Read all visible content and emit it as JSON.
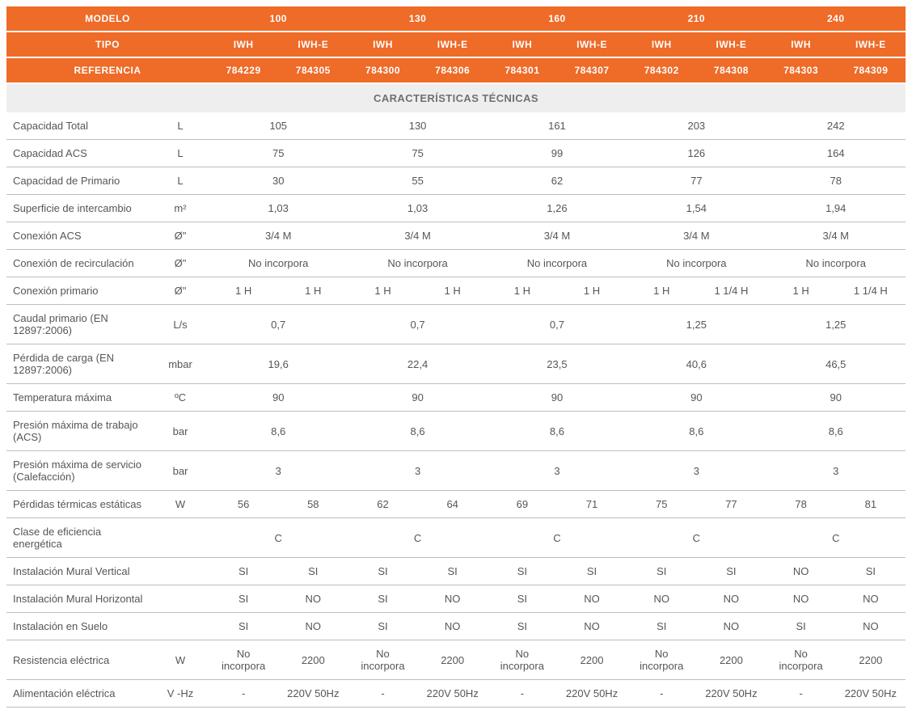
{
  "colors": {
    "header_bg": "#ee6b28",
    "header_text": "#ffffff",
    "section_bg": "#eeeeee",
    "section_text": "#6f7072",
    "body_text": "#55565a",
    "border": "#bdbdbd"
  },
  "typography": {
    "font_family": "Segoe UI, Helvetica Neue, Arial, sans-serif",
    "header_font_size_pt": 9,
    "body_font_size_pt": 10,
    "header_weight": 700,
    "body_weight": 400
  },
  "header": {
    "modelo_label": "MODELO",
    "tipo_label": "TIPO",
    "referencia_label": "REFERENCIA",
    "section_title": "CARACTERÍSTICAS TÉCNICAS",
    "models": [
      "100",
      "130",
      "160",
      "210",
      "240"
    ],
    "types": [
      "IWH",
      "IWH-E",
      "IWH",
      "IWH-E",
      "IWH",
      "IWH-E",
      "IWH",
      "IWH-E",
      "IWH",
      "IWH-E"
    ],
    "refs": [
      "784229",
      "784305",
      "784300",
      "784306",
      "784301",
      "784307",
      "784302",
      "784308",
      "784303",
      "784309"
    ]
  },
  "rows": [
    {
      "label": "Capacidad Total",
      "unit": "L",
      "span": 2,
      "vals": [
        "105",
        "130",
        "161",
        "203",
        "242"
      ]
    },
    {
      "label": "Capacidad ACS",
      "unit": "L",
      "span": 2,
      "vals": [
        "75",
        "75",
        "99",
        "126",
        "164"
      ]
    },
    {
      "label": "Capacidad de Primario",
      "unit": "L",
      "span": 2,
      "vals": [
        "30",
        "55",
        "62",
        "77",
        "78"
      ]
    },
    {
      "label": "Superficie de intercambio",
      "unit": "m²",
      "span": 2,
      "vals": [
        "1,03",
        "1,03",
        "1,26",
        "1,54",
        "1,94"
      ]
    },
    {
      "label": "Conexión ACS",
      "unit": "Ø\"",
      "span": 2,
      "vals": [
        "3/4 M",
        "3/4 M",
        "3/4 M",
        "3/4 M",
        "3/4 M"
      ]
    },
    {
      "label": "Conexión de recirculación",
      "unit": "Ø\"",
      "span": 2,
      "vals": [
        "No incorpora",
        "No incorpora",
        "No incorpora",
        "No incorpora",
        "No incorpora"
      ]
    },
    {
      "label": "Conexión primario",
      "unit": "Ø\"",
      "span": 1,
      "vals": [
        "1 H",
        "1 H",
        "1 H",
        "1 H",
        "1 H",
        "1 H",
        "1 H",
        "1 1/4 H",
        "1 H",
        "1 1/4 H"
      ]
    },
    {
      "label": "Caudal primario (EN 12897:2006)",
      "unit": "L/s",
      "span": 2,
      "vals": [
        "0,7",
        "0,7",
        "0,7",
        "1,25",
        "1,25"
      ]
    },
    {
      "label": "Pérdida de carga (EN 12897:2006)",
      "unit": "mbar",
      "span": 2,
      "vals": [
        "19,6",
        "22,4",
        "23,5",
        "40,6",
        "46,5"
      ]
    },
    {
      "label": "Temperatura máxima",
      "unit": "ºC",
      "span": 2,
      "vals": [
        "90",
        "90",
        "90",
        "90",
        "90"
      ]
    },
    {
      "label": "Presión máxima de trabajo (ACS)",
      "unit": "bar",
      "span": 2,
      "vals": [
        "8,6",
        "8,6",
        "8,6",
        "8,6",
        "8,6"
      ]
    },
    {
      "label": "Presión máxima de servicio (Calefacción)",
      "unit": "bar",
      "span": 2,
      "vals": [
        "3",
        "3",
        "3",
        "3",
        "3"
      ]
    },
    {
      "label": "Pérdidas térmicas estáticas",
      "unit": "W",
      "span": 1,
      "vals": [
        "56",
        "58",
        "62",
        "64",
        "69",
        "71",
        "75",
        "77",
        "78",
        "81"
      ]
    },
    {
      "label": "Clase de eficiencia energética",
      "unit": "",
      "span": 2,
      "vals": [
        "C",
        "C",
        "C",
        "C",
        "C"
      ]
    },
    {
      "label": "Instalación Mural Vertical",
      "unit": "",
      "span": 1,
      "vals": [
        "SI",
        "SI",
        "SI",
        "SI",
        "SI",
        "SI",
        "SI",
        "SI",
        "NO",
        "SI"
      ]
    },
    {
      "label": "Instalación Mural Horizontal",
      "unit": "",
      "span": 1,
      "vals": [
        "SI",
        "NO",
        "SI",
        "NO",
        "SI",
        "NO",
        "NO",
        "NO",
        "NO",
        "NO"
      ]
    },
    {
      "label": "Instalación en Suelo",
      "unit": "",
      "span": 1,
      "vals": [
        "SI",
        "NO",
        "SI",
        "NO",
        "SI",
        "NO",
        "SI",
        "NO",
        "SI",
        "NO"
      ]
    },
    {
      "label": "Resistencia eléctrica",
      "unit": "W",
      "span": 1,
      "vals": [
        "No incorpora",
        "2200",
        "No incorpora",
        "2200",
        "No incorpora",
        "2200",
        "No incorpora",
        "2200",
        "No incorpora",
        "2200"
      ]
    },
    {
      "label": "Alimentación eléctrica",
      "unit": "V -Hz",
      "span": 1,
      "vals": [
        "-",
        "220V 50Hz",
        "-",
        "220V 50Hz",
        "-",
        "220V 50Hz",
        "-",
        "220V 50Hz",
        "-",
        "220V 50Hz"
      ]
    }
  ]
}
